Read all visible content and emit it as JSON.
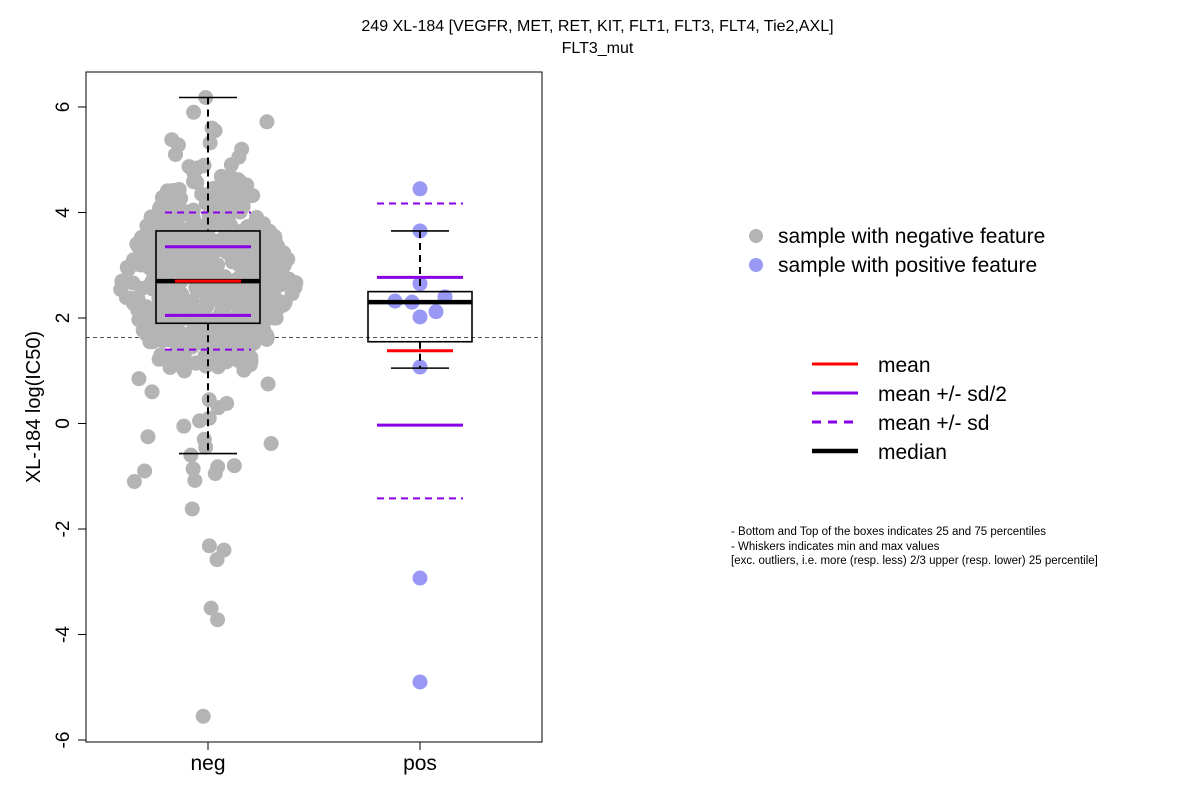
{
  "chart_data": {
    "type": "box",
    "title": "249 XL-184 [VEGFR, MET, RET, KIT, FLT1, FLT3, FLT4, Tie2,AXL]",
    "subtitle": "FLT3_mut",
    "xlabel": "",
    "ylabel": "XL-184 log(IC50)",
    "categories": [
      "neg",
      "pos"
    ],
    "ylim": [
      -6,
      6.6
    ],
    "yticks": [
      -6,
      -4,
      -2,
      0,
      2,
      4,
      6
    ],
    "reference_line": 1.63,
    "grid": false,
    "legend_position": "right",
    "groups": [
      {
        "name": "neg",
        "color": "#b4b4b4",
        "q1": 1.9,
        "median": 2.7,
        "q3": 3.65,
        "whisker_low": -0.57,
        "whisker_high": 6.18,
        "mean": 2.7,
        "mean_minus_half_sd": 2.05,
        "mean_plus_half_sd": 3.35,
        "mean_minus_sd": 1.4,
        "mean_plus_sd": 4.0,
        "low_points": [
          6.18,
          5.9,
          5.72,
          5.55,
          5.6,
          5.38,
          5.32,
          5.28,
          5.2,
          5.1,
          5.05,
          4.05,
          0.85,
          0.75,
          0.6,
          0.45,
          0.38,
          0.3,
          0.1,
          0.05,
          -0.05,
          -0.25,
          -0.3,
          -0.38,
          -0.45,
          -0.6,
          -0.8,
          -0.82,
          -0.86,
          -0.9,
          -0.95,
          -1.08,
          -1.1,
          -1.62,
          -2.32,
          -2.4,
          -2.58,
          -3.5,
          -3.72,
          -5.55
        ]
      },
      {
        "name": "pos",
        "color": "#9999f5",
        "q1": 1.55,
        "median": 2.3,
        "q3": 2.5,
        "whisker_low": 1.05,
        "whisker_high": 3.65,
        "mean": 1.38,
        "mean_minus_half_sd": -0.03,
        "mean_plus_half_sd": 2.77,
        "mean_minus_sd": -1.42,
        "mean_plus_sd": 4.17,
        "points": [
          4.45,
          3.65,
          2.65,
          2.4,
          2.32,
          2.3,
          2.12,
          2.02,
          1.07,
          -2.93,
          -4.9
        ]
      }
    ],
    "legend_points": [
      {
        "label": "sample with negative feature",
        "color": "#b4b4b4"
      },
      {
        "label": "sample with positive feature",
        "color": "#9999f5"
      }
    ],
    "legend_lines": [
      {
        "label": "mean",
        "color": "#ff0000",
        "style": "solid"
      },
      {
        "label": "mean +/- sd/2",
        "color": "#8a00e6",
        "style": "solid"
      },
      {
        "label": "mean +/- sd",
        "color": "#8a00e6",
        "style": "dashed"
      },
      {
        "label": "median",
        "color": "#000000",
        "style": "solid-bold"
      }
    ],
    "notes": [
      "- Bottom and Top of the boxes indicates 25 and 75 percentiles",
      "- Whiskers indicates min and max values",
      "[exc. outliers, i.e. more (resp. less) 2/3 upper (resp. lower) 25 percentile]"
    ]
  }
}
